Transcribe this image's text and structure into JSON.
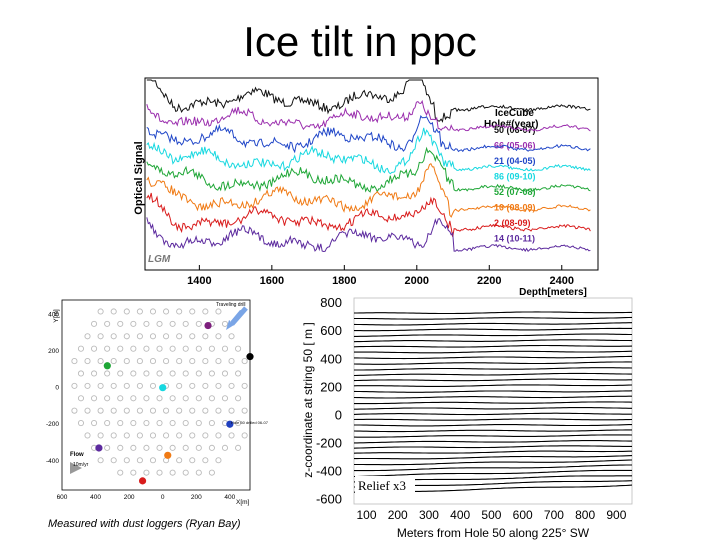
{
  "slide_title": "Ice tilt in ppc",
  "caption": "Measured with dust loggers (Ryan Bay)",
  "chart_data": [
    {
      "type": "line",
      "name": "dust-logger-optical-signal",
      "ylabel": "Optical Signal",
      "xlabel": "Depth[meters]",
      "xlim": [
        1250,
        2500
      ],
      "xticks": [
        1400,
        1600,
        1800,
        2000,
        2200,
        2400
      ],
      "legend_title": "IceCube Hole#(year)",
      "annotation": "LGM",
      "series": [
        {
          "hole": "50",
          "year": "(06-07)",
          "color": "#111111"
        },
        {
          "hole": "66",
          "year": "(05-06)",
          "color": "#9b2fae"
        },
        {
          "hole": "21",
          "year": "(04-05)",
          "color": "#2147c8"
        },
        {
          "hole": "86",
          "year": "(09-10)",
          "color": "#17d8e0"
        },
        {
          "hole": "52",
          "year": "(07-08)",
          "color": "#1ea636"
        },
        {
          "hole": "10",
          "year": "(08-09)",
          "color": "#f07a14"
        },
        {
          "hole": "2",
          "year": "(08-09)",
          "color": "#d91c1c"
        },
        {
          "hole": "14",
          "year": "(10-11)",
          "color": "#5c2a9e"
        }
      ]
    },
    {
      "type": "scatter",
      "name": "string-map",
      "xlabel": "X[m]",
      "ylabel": "Y[m]",
      "xlim": [
        -600,
        520
      ],
      "ylim": [
        -560,
        480
      ],
      "xticks": [
        -600,
        -400,
        -200,
        0,
        200,
        400,
        600
      ],
      "xtick_labels": [
        "600",
        "400",
        "200",
        "0",
        "200",
        "400",
        "600"
      ],
      "yticks": [
        -400,
        -200,
        0,
        200,
        400
      ],
      "ytick_labels": [
        "-400",
        "-200",
        "0",
        "200",
        "400"
      ],
      "arrow_label": "Traveling drill",
      "flow_label": "Flow",
      "flow_sublabel": "10m/yr",
      "highlight_label": "Hole 50 drilled 06-07",
      "highlighted_strings": [
        {
          "x": 270,
          "y": 340,
          "color": "#7d1f7d"
        },
        {
          "x": 520,
          "y": 170,
          "color": "#000000"
        },
        {
          "x": -330,
          "y": 120,
          "color": "#1ea636"
        },
        {
          "x": 0,
          "y": 0,
          "color": "#17d8e0"
        },
        {
          "x": 400,
          "y": -200,
          "color": "#1f3fbf"
        },
        {
          "x": -380,
          "y": -330,
          "color": "#5c2a9e"
        },
        {
          "x": 30,
          "y": -370,
          "color": "#f07a14"
        },
        {
          "x": -120,
          "y": -510,
          "color": "#d91c1c"
        }
      ]
    },
    {
      "type": "line",
      "name": "layer-tilt",
      "xlabel": "Meters from Hole 50 along 225° SW",
      "ylabel": "z-coordinate at string 50 [ m ]",
      "xlim": [
        60,
        950
      ],
      "ylim": [
        -640,
        830
      ],
      "xticks": [
        100,
        200,
        300,
        400,
        500,
        600,
        700,
        800,
        900
      ],
      "yticks": [
        -600,
        -400,
        -200,
        0,
        200,
        400,
        600,
        800
      ],
      "annotation": "Relief x3",
      "layers_left_z": [
        720,
        680,
        640,
        600,
        560,
        520,
        480,
        440,
        400,
        360,
        320,
        280,
        240,
        200,
        160,
        120,
        80,
        40,
        0,
        -40,
        -80,
        -120,
        -160,
        -200,
        -240,
        -280,
        -320,
        -360,
        -400,
        -440,
        -480,
        -520,
        -560
      ],
      "layers_right_z": [
        730,
        690,
        650,
        610,
        570,
        530,
        490,
        450,
        410,
        370,
        330,
        290,
        250,
        210,
        165,
        125,
        85,
        45,
        5,
        -35,
        -75,
        -115,
        -150,
        -190,
        -225,
        -260,
        -295,
        -330,
        -365,
        -400,
        -435,
        -470,
        -505
      ]
    }
  ]
}
